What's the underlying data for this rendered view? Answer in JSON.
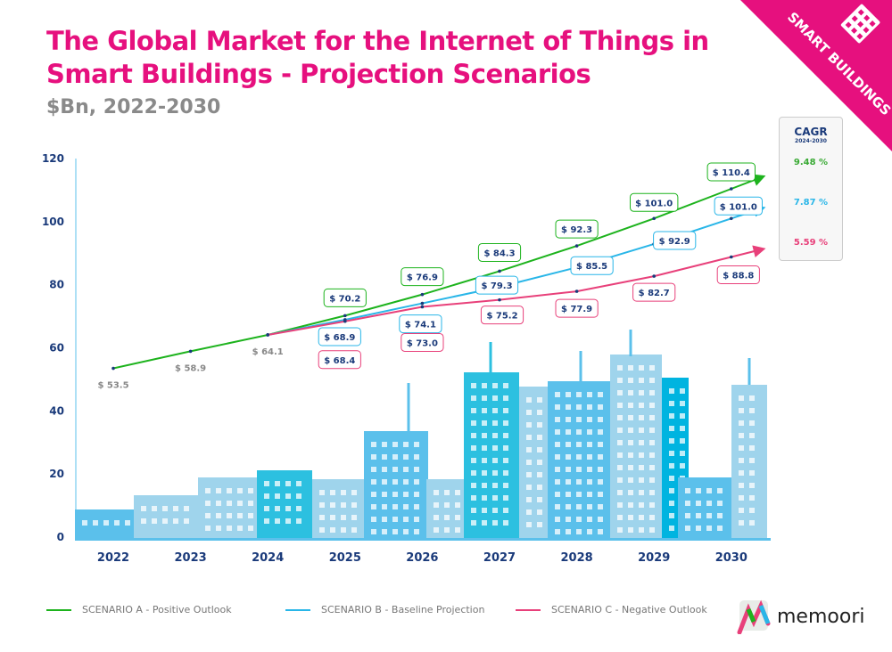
{
  "title": "The Global Market for the Internet of Things in Smart Buildings - Projection Scenarios",
  "subtitle": "$Bn, 2022-2030",
  "banner": {
    "label": "SMART BUILDINGS",
    "icon": "building-icon",
    "color": "#e6107e"
  },
  "cagr": {
    "heading": "CAGR",
    "period": "2024-2030",
    "values": [
      {
        "value": "9.48 %",
        "color": "#3aaa35"
      },
      {
        "value": "7.87 %",
        "color": "#29b6e8"
      },
      {
        "value": "5.59 %",
        "color": "#e8407a"
      }
    ]
  },
  "logo": {
    "text": "memoori"
  },
  "chart_data": {
    "type": "line",
    "title": "The Global Market for the Internet of Things in Smart Buildings - Projection Scenarios",
    "subtitle": "$Bn, 2022-2030",
    "x": [
      "2022",
      "2023",
      "2024",
      "2025",
      "2026",
      "2027",
      "2028",
      "2029",
      "2030"
    ],
    "ylim": [
      0,
      120
    ],
    "yticks": [
      0,
      20,
      40,
      60,
      80,
      100,
      120
    ],
    "grid": false,
    "legend": "bottom",
    "value_prefix": "$ ",
    "series": [
      {
        "name": "SCENARIO A - Positive Outlook",
        "color": "#1db31d",
        "values": [
          53.5,
          58.9,
          64.1,
          70.2,
          76.9,
          84.3,
          92.3,
          101.0,
          110.4
        ],
        "labels": [
          "$ 53.5",
          "$ 58.9",
          "$ 64.1",
          "$ 70.2",
          "$ 76.9",
          "$ 84.3",
          "$ 92.3",
          "$ 101.0",
          "$ 110.4"
        ]
      },
      {
        "name": "SCENARIO B - Baseline Projection",
        "color": "#29b6e8",
        "values": [
          null,
          null,
          64.1,
          68.9,
          74.1,
          79.3,
          85.5,
          92.9,
          101.0
        ],
        "labels": [
          null,
          null,
          null,
          "$ 68.9",
          "$ 74.1",
          "$ 79.3",
          "$ 85.5",
          "$ 92.9",
          "$ 101.0"
        ]
      },
      {
        "name": "SCENARIO C - Negative Outlook",
        "color": "#e8407a",
        "values": [
          null,
          null,
          64.1,
          68.4,
          73.0,
          75.2,
          77.9,
          82.7,
          88.8
        ],
        "labels": [
          null,
          null,
          null,
          "$ 68.4",
          "$ 73.0",
          "$ 75.2",
          "$ 77.9",
          "$ 82.7",
          "$ 88.8"
        ]
      }
    ]
  }
}
